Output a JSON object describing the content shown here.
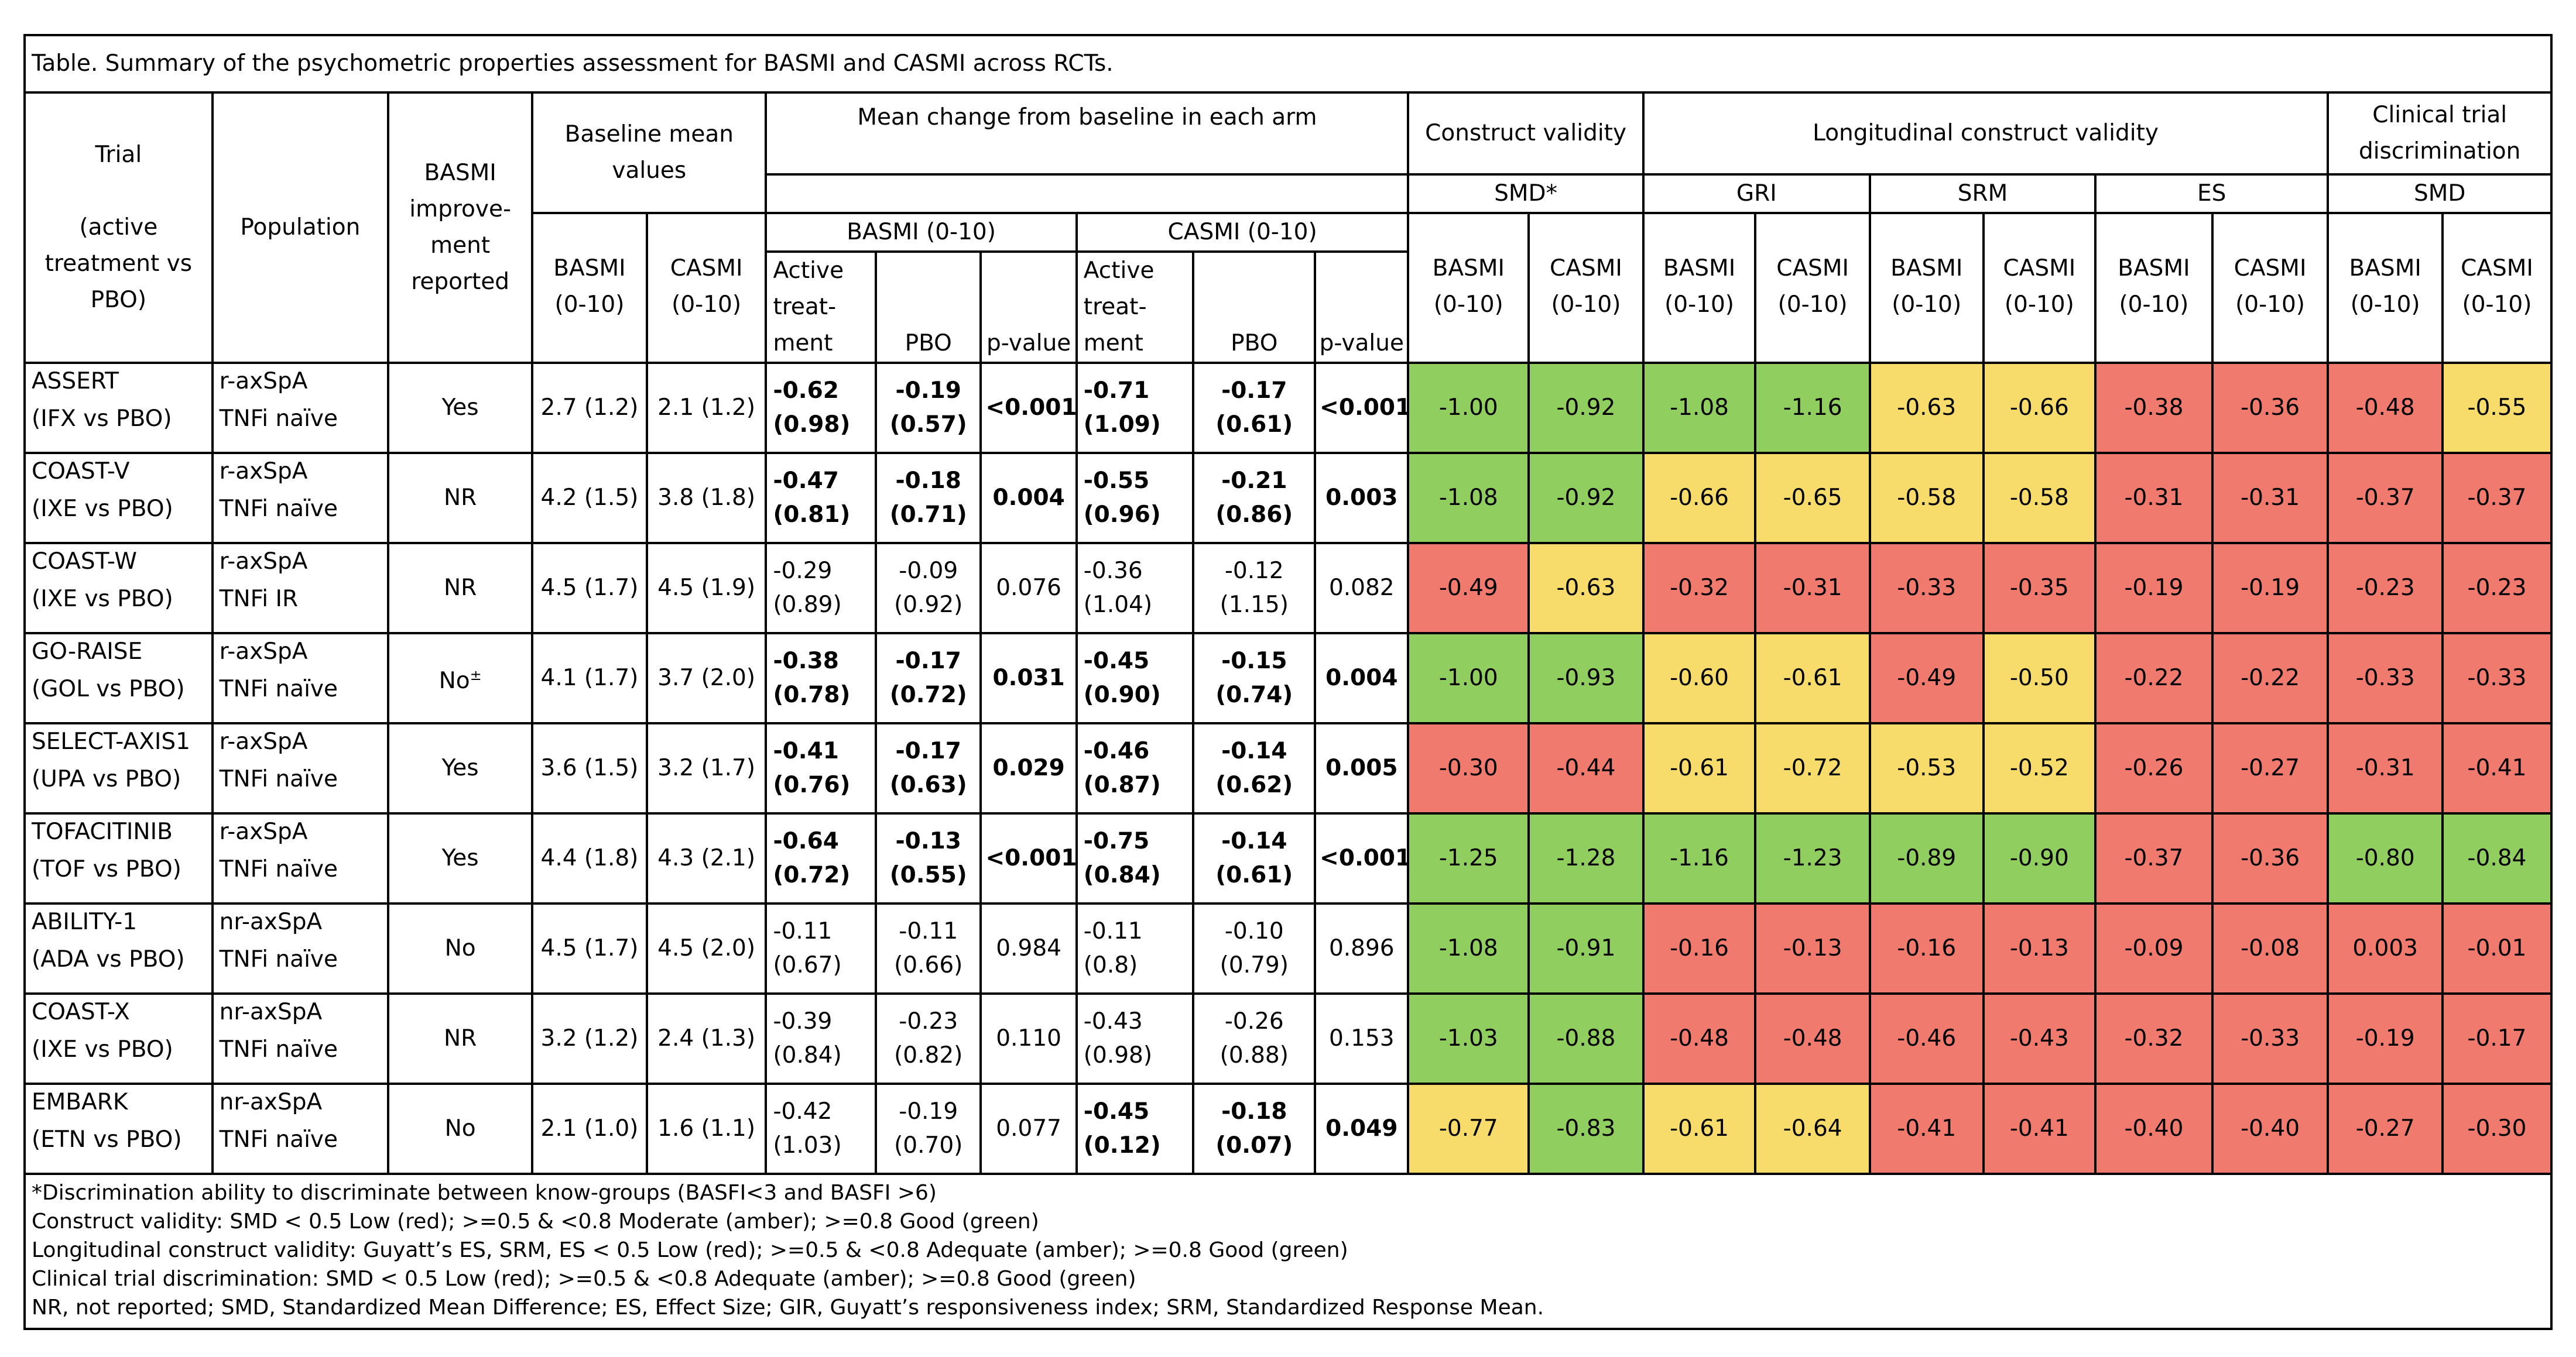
{
  "title": "Table. Summary of the psychometric properties assessment for BASMI and CASMI across RCTs.",
  "headers": {
    "trial": "Trial",
    "trial_sub": "(active treatment vs PBO)",
    "population": "Population",
    "improvement": "BASMI improve-ment reported",
    "baseline": "Baseline mean values",
    "mean_change": "Mean change from baseline in each arm",
    "basmi_range": "BASMI (0-10)",
    "casmi_range": "CASMI (0-10)",
    "construct_validity": "Construct validity",
    "longitudinal": "Longitudinal construct validity",
    "clinical_trial": "Clinical trial discrimination",
    "smd_star": "SMD*",
    "gri": "GRI",
    "srm": "SRM",
    "es": "ES",
    "smd": "SMD",
    "basmi": "BASMI",
    "casmi": "CASMI",
    "range": "(0-10)",
    "active_treatment": "Active treat-ment",
    "pbo": "PBO",
    "p_value": "p-value"
  },
  "colors": {
    "green": "#90cf5f",
    "amber": "#f8dc6b",
    "red": "#f07a6d"
  },
  "rows": [
    {
      "trial": "ASSERT",
      "comparison": "(IFX vs PBO)",
      "pop": "r-axSpA",
      "pop2": "TNFi naïve",
      "improvement": "Yes",
      "b_basmi": "2.7 (1.2)",
      "b_casmi": "2.1 (1.2)",
      "basmi_active": "-0.62 (0.98)",
      "basmi_pbo": "-0.19 (0.57)",
      "basmi_p": "<0.001",
      "basmi_bold": true,
      "casmi_active": "-0.71 (1.09)",
      "casmi_pbo": "-0.17 (0.61)",
      "casmi_p": "<0.001",
      "casmi_bold": true,
      "metrics": [
        "-1.00",
        "-0.92",
        "-1.08",
        "-1.16",
        "-0.63",
        "-0.66",
        "-0.38",
        "-0.36",
        "-0.48",
        "-0.55"
      ],
      "metric_colors": [
        "green",
        "green",
        "green",
        "green",
        "amber",
        "amber",
        "red",
        "red",
        "red",
        "amber"
      ]
    },
    {
      "trial": "COAST-V",
      "comparison": "(IXE vs PBO)",
      "pop": "r-axSpA",
      "pop2": "TNFi naïve",
      "improvement": "NR",
      "b_basmi": "4.2 (1.5)",
      "b_casmi": "3.8 (1.8)",
      "basmi_active": "-0.47 (0.81)",
      "basmi_pbo": "-0.18 (0.71)",
      "basmi_p": "0.004",
      "basmi_bold": true,
      "casmi_active": "-0.55 (0.96)",
      "casmi_pbo": "-0.21 (0.86)",
      "casmi_p": "0.003",
      "casmi_bold": true,
      "metrics": [
        "-1.08",
        "-0.92",
        "-0.66",
        "-0.65",
        "-0.58",
        "-0.58",
        "-0.31",
        "-0.31",
        "-0.37",
        "-0.37"
      ],
      "metric_colors": [
        "green",
        "green",
        "amber",
        "amber",
        "amber",
        "amber",
        "red",
        "red",
        "red",
        "red"
      ]
    },
    {
      "trial": "COAST-W",
      "comparison": "(IXE vs PBO)",
      "pop": "r-axSpA",
      "pop2": "TNFi IR",
      "improvement": "NR",
      "b_basmi": "4.5 (1.7)",
      "b_casmi": "4.5 (1.9)",
      "basmi_active": "-0.29 (0.89)",
      "basmi_pbo": "-0.09 (0.92)",
      "basmi_p": "0.076",
      "basmi_bold": false,
      "casmi_active": "-0.36 (1.04)",
      "casmi_pbo": "-0.12 (1.15)",
      "casmi_p": "0.082",
      "casmi_bold": false,
      "metrics": [
        "-0.49",
        "-0.63",
        "-0.32",
        "-0.31",
        "-0.33",
        "-0.35",
        "-0.19",
        "-0.19",
        "-0.23",
        "-0.23"
      ],
      "metric_colors": [
        "red",
        "amber",
        "red",
        "red",
        "red",
        "red",
        "red",
        "red",
        "red",
        "red"
      ]
    },
    {
      "trial": "GO-RAISE",
      "comparison": "(GOL vs PBO)",
      "pop": "r-axSpA",
      "pop2": "TNFi naïve",
      "improvement": "No",
      "improvement_sup": "±",
      "b_basmi": "4.1 (1.7)",
      "b_casmi": "3.7 (2.0)",
      "basmi_active": "-0.38 (0.78)",
      "basmi_pbo": "-0.17 (0.72)",
      "basmi_p": "0.031",
      "basmi_bold": true,
      "casmi_active": "-0.45 (0.90)",
      "casmi_pbo": "-0.15 (0.74)",
      "casmi_p": "0.004",
      "casmi_bold": true,
      "metrics": [
        "-1.00",
        "-0.93",
        "-0.60",
        "-0.61",
        "-0.49",
        "-0.50",
        "-0.22",
        "-0.22",
        "-0.33",
        "-0.33"
      ],
      "metric_colors": [
        "green",
        "green",
        "amber",
        "amber",
        "red",
        "amber",
        "red",
        "red",
        "red",
        "red"
      ]
    },
    {
      "trial": "SELECT-AXIS1",
      "comparison": "(UPA vs PBO)",
      "pop": "r-axSpA",
      "pop2": "TNFi naïve",
      "improvement": "Yes",
      "b_basmi": "3.6 (1.5)",
      "b_casmi": "3.2 (1.7)",
      "basmi_active": "-0.41 (0.76)",
      "basmi_pbo": "-0.17 (0.63)",
      "basmi_p": "0.029",
      "basmi_bold": true,
      "casmi_active": "-0.46 (0.87)",
      "casmi_pbo": "-0.14 (0.62)",
      "casmi_p": "0.005",
      "casmi_bold": true,
      "metrics": [
        "-0.30",
        "-0.44",
        "-0.61",
        "-0.72",
        "-0.53",
        "-0.52",
        "-0.26",
        "-0.27",
        "-0.31",
        "-0.41"
      ],
      "metric_colors": [
        "red",
        "red",
        "amber",
        "amber",
        "amber",
        "amber",
        "red",
        "red",
        "red",
        "red"
      ]
    },
    {
      "trial": "TOFACITINIB",
      "comparison": "(TOF vs PBO)",
      "pop": "r-axSpA",
      "pop2": "TNFi naïve",
      "improvement": "Yes",
      "b_basmi": "4.4 (1.8)",
      "b_casmi": "4.3 (2.1)",
      "basmi_active": "-0.64 (0.72)",
      "basmi_pbo": "-0.13 (0.55)",
      "basmi_p": "<0.001",
      "basmi_bold": true,
      "casmi_active": "-0.75 (0.84)",
      "casmi_pbo": "-0.14 (0.61)",
      "casmi_p": "<0.001",
      "casmi_bold": true,
      "metrics": [
        "-1.25",
        "-1.28",
        "-1.16",
        "-1.23",
        "-0.89",
        "-0.90",
        "-0.37",
        "-0.36",
        "-0.80",
        "-0.84"
      ],
      "metric_colors": [
        "green",
        "green",
        "green",
        "green",
        "green",
        "green",
        "red",
        "red",
        "green",
        "green"
      ]
    },
    {
      "trial": "ABILITY-1",
      "comparison": "(ADA vs PBO)",
      "pop": "nr-axSpA",
      "pop2": "TNFi naïve",
      "improvement": "No",
      "b_basmi": "4.5 (1.7)",
      "b_casmi": "4.5 (2.0)",
      "basmi_active": "-0.11 (0.67)",
      "basmi_pbo": "-0.11 (0.66)",
      "basmi_p": "0.984",
      "basmi_bold": false,
      "casmi_active": "-0.11 (0.8)",
      "casmi_pbo": "-0.10 (0.79)",
      "casmi_p": "0.896",
      "casmi_bold": false,
      "metrics": [
        "-1.08",
        "-0.91",
        "-0.16",
        "-0.13",
        "-0.16",
        "-0.13",
        "-0.09",
        "-0.08",
        "0.003",
        "-0.01"
      ],
      "metric_colors": [
        "green",
        "green",
        "red",
        "red",
        "red",
        "red",
        "red",
        "red",
        "red",
        "red"
      ]
    },
    {
      "trial": "COAST-X",
      "comparison": "(IXE vs PBO)",
      "pop": "nr-axSpA",
      "pop2": "TNFi naïve",
      "improvement": "NR",
      "b_basmi": "3.2 (1.2)",
      "b_casmi": "2.4 (1.3)",
      "basmi_active": "-0.39 (0.84)",
      "basmi_pbo": "-0.23 (0.82)",
      "basmi_p": "0.110",
      "basmi_bold": false,
      "casmi_active": "-0.43 (0.98)",
      "casmi_pbo": "-0.26 (0.88)",
      "casmi_p": "0.153",
      "casmi_bold": false,
      "metrics": [
        "-1.03",
        "-0.88",
        "-0.48",
        "-0.48",
        "-0.46",
        "-0.43",
        "-0.32",
        "-0.33",
        "-0.19",
        "-0.17"
      ],
      "metric_colors": [
        "green",
        "green",
        "red",
        "red",
        "red",
        "red",
        "red",
        "red",
        "red",
        "red"
      ]
    },
    {
      "trial": "EMBARK",
      "comparison": "(ETN vs PBO)",
      "pop": "nr-axSpA",
      "pop2": "TNFi naïve",
      "improvement": "No",
      "b_basmi": "2.1 (1.0)",
      "b_casmi": "1.6 (1.1)",
      "basmi_active": "-0.42 (1.03)",
      "basmi_pbo": "-0.19 (0.70)",
      "basmi_p": "0.077",
      "basmi_bold": false,
      "casmi_active": "-0.45 (0.12)",
      "casmi_pbo": "-0.18 (0.07)",
      "casmi_p": "0.049",
      "casmi_bold": true,
      "metrics": [
        "-0.77",
        "-0.83",
        "-0.61",
        "-0.64",
        "-0.41",
        "-0.41",
        "-0.40",
        "-0.40",
        "-0.27",
        "-0.30"
      ],
      "metric_colors": [
        "amber",
        "green",
        "amber",
        "amber",
        "red",
        "red",
        "red",
        "red",
        "red",
        "red"
      ]
    }
  ],
  "footnotes": [
    "*Discrimination ability to discriminate between know-groups (BASFI<3 and BASFI >6)",
    "Construct validity: SMD < 0.5 Low (red); >=0.5 & <0.8 Moderate (amber); >=0.8 Good (green)",
    "Longitudinal construct validity: Guyatt’s ES, SRM, ES < 0.5 Low (red); >=0.5 & <0.8 Adequate (amber); >=0.8 Good (green)",
    "Clinical trial discrimination: SMD < 0.5 Low (red); >=0.5 & <0.8 Adequate (amber); >=0.8 Good (green)",
    "NR, not reported; SMD, Standardized Mean Difference; ES, Effect Size; GIR, Guyatt’s responsiveness index; SRM, Standardized Response Mean."
  ]
}
